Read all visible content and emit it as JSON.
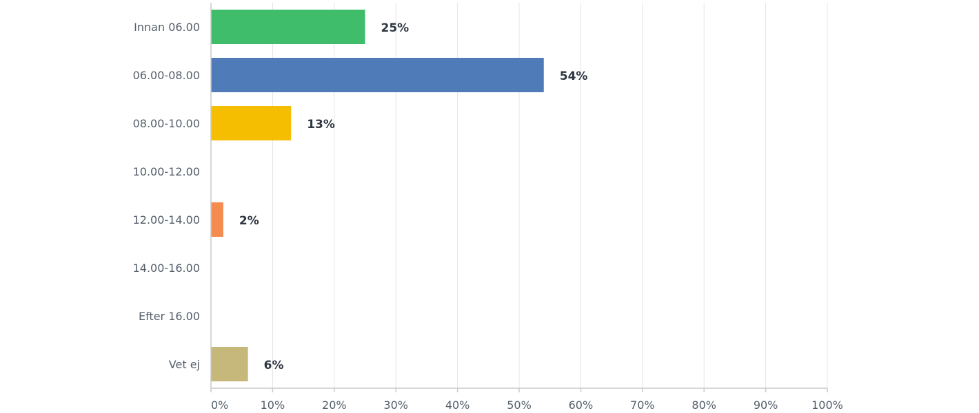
{
  "chart_data": {
    "type": "bar",
    "orientation": "horizontal",
    "categories": [
      "Innan 06.00",
      "06.00-08.00",
      "08.00-10.00",
      "10.00-12.00",
      "12.00-14.00",
      "14.00-16.00",
      "Efter 16.00",
      "Vet ej"
    ],
    "values": [
      25,
      54,
      13,
      0,
      2,
      0,
      0,
      6
    ],
    "value_labels": [
      "25%",
      "54%",
      "13%",
      "",
      "2%",
      "",
      "",
      "6%"
    ],
    "colors": [
      "#3fbd6b",
      "#4f7cb8",
      "#f6be00",
      "#d9d9d9",
      "#f48b4f",
      "#d9d9d9",
      "#d9d9d9",
      "#c6b77a"
    ],
    "xlim": [
      0,
      100
    ],
    "x_ticks": [
      0,
      10,
      20,
      30,
      40,
      50,
      60,
      70,
      80,
      90,
      100
    ],
    "x_tick_labels": [
      "0%",
      "10%",
      "20%",
      "30%",
      "40%",
      "50%",
      "60%",
      "70%",
      "80%",
      "90%",
      "100%"
    ],
    "grid": true,
    "title": "",
    "xlabel": "",
    "ylabel": ""
  }
}
